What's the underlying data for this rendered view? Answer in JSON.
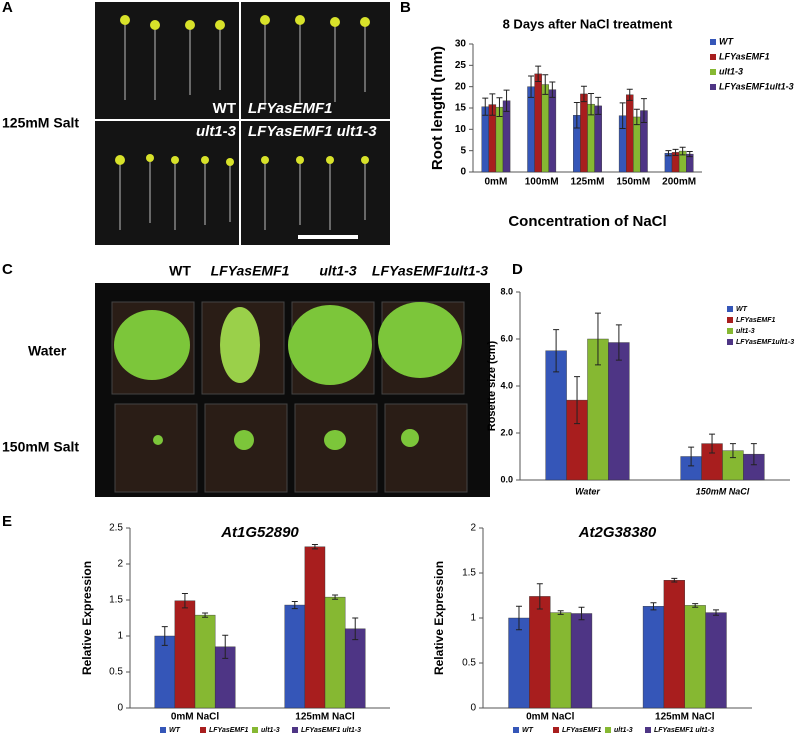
{
  "panels": {
    "letters": [
      "A",
      "B",
      "C",
      "D",
      "E"
    ],
    "photo_a": {
      "condition": "125mM Salt",
      "labels": [
        "WT",
        "LFYasEMF1",
        "ult1-3",
        "LFYasEMF1 ult1-3"
      ]
    },
    "photo_c": {
      "genotypes": [
        "WT",
        "LFYasEMF1",
        "ult1-3",
        "LFYasEMF1ult1-3"
      ],
      "conditions": [
        "Water",
        "150mM Salt"
      ]
    }
  },
  "chart_data": [
    {
      "type": "bar",
      "title": "8 Days after NaCl treatment",
      "y_label": "Root length (mm)",
      "x_label": "Concentration of NaCl",
      "categories": [
        "0mM",
        "100mM",
        "125mM",
        "150mM",
        "200mM"
      ],
      "series": [
        {
          "name": "WT",
          "color": "#3556b8",
          "values": [
            15.3,
            20,
            13.3,
            13.2,
            4.4
          ],
          "errors": [
            2,
            2.5,
            3,
            3,
            0.6
          ]
        },
        {
          "name": "LFYasEMF1",
          "color": "#a81e1e",
          "values": [
            15.8,
            23,
            18.3,
            18.1,
            4.6
          ],
          "errors": [
            2.5,
            1.8,
            1.8,
            1.3,
            0.7
          ]
        },
        {
          "name": "ult1-3",
          "color": "#86b832",
          "values": [
            15.2,
            20.5,
            15.9,
            12.9,
            4.9
          ],
          "errors": [
            2.2,
            2.3,
            2.5,
            1.8,
            0.9
          ]
        },
        {
          "name": "LFYasEMF1ult1-3",
          "color": "#4e3585",
          "values": [
            16.7,
            19.3,
            15.5,
            14.4,
            4.2
          ],
          "errors": [
            2.5,
            1.8,
            2,
            2.8,
            0.6
          ]
        }
      ],
      "ylim": [
        0,
        30
      ],
      "yticks": [
        0,
        5,
        10,
        15,
        20,
        25,
        30
      ],
      "legend": "upper right"
    },
    {
      "type": "bar",
      "y_label": "Rosette size (cm)",
      "categories": [
        "Water",
        "150mM NaCl"
      ],
      "series": [
        {
          "name": "WT",
          "color": "#3556b8",
          "values": [
            5.5,
            1.0
          ],
          "errors": [
            0.9,
            0.4
          ]
        },
        {
          "name": "LFYasEMF1",
          "color": "#a81e1e",
          "values": [
            3.4,
            1.55
          ],
          "errors": [
            1.0,
            0.4
          ]
        },
        {
          "name": "ult1-3",
          "color": "#86b832",
          "values": [
            6.0,
            1.25
          ],
          "errors": [
            1.1,
            0.3
          ]
        },
        {
          "name": "LFYasEMF1ult1-3",
          "color": "#4e3585",
          "values": [
            5.85,
            1.1
          ],
          "errors": [
            0.75,
            0.45
          ]
        }
      ],
      "ylim": [
        0,
        8
      ],
      "yticks": [
        {
          "value": 0,
          "label": "0.0"
        },
        {
          "value": 2,
          "label": "2.0"
        },
        {
          "value": 4,
          "label": "4.0"
        },
        {
          "value": 6,
          "label": "6.0"
        },
        {
          "value": 8,
          "label": "8.0"
        }
      ],
      "legend": "upper right"
    },
    {
      "type": "bar",
      "title": "At1G52890",
      "y_label": "Relative Expression",
      "categories": [
        "0mM NaCl",
        "125mM NaCl"
      ],
      "series": [
        {
          "name": "WT",
          "color": "#3556b8",
          "values": [
            1.0,
            1.43
          ],
          "errors": [
            0.13,
            0.05
          ]
        },
        {
          "name": "LFYasEMF1",
          "color": "#a81e1e",
          "values": [
            1.49,
            2.24
          ],
          "errors": [
            0.1,
            0.03
          ]
        },
        {
          "name": "ult1-3",
          "color": "#86b832",
          "values": [
            1.29,
            1.54
          ],
          "errors": [
            0.03,
            0.03
          ]
        },
        {
          "name": "LFYasEMF1 ult1-3",
          "color": "#4e3585",
          "values": [
            0.85,
            1.1
          ],
          "errors": [
            0.16,
            0.15
          ]
        }
      ],
      "ylim": [
        0,
        2.5
      ],
      "yticks": [
        0,
        0.5,
        1,
        1.5,
        2,
        2.5
      ],
      "legend": "bottom"
    },
    {
      "type": "bar",
      "title": "At2G38380",
      "y_label": "Relative Expression",
      "categories": [
        "0mM NaCl",
        "125mM NaCl"
      ],
      "series": [
        {
          "name": "WT",
          "color": "#3556b8",
          "values": [
            1.0,
            1.13
          ],
          "errors": [
            0.13,
            0.04
          ]
        },
        {
          "name": "LFYasEMF1",
          "color": "#a81e1e",
          "values": [
            1.24,
            1.42
          ],
          "errors": [
            0.14,
            0.02
          ]
        },
        {
          "name": "ult1-3",
          "color": "#86b832",
          "values": [
            1.06,
            1.14
          ],
          "errors": [
            0.02,
            0.02
          ]
        },
        {
          "name": "LFYasEMF1 ult1-3",
          "color": "#4e3585",
          "values": [
            1.05,
            1.06
          ],
          "errors": [
            0.07,
            0.03
          ]
        }
      ],
      "ylim": [
        0,
        2
      ],
      "yticks": [
        0,
        0.5,
        1,
        1.5,
        2
      ],
      "legend": "bottom"
    }
  ]
}
